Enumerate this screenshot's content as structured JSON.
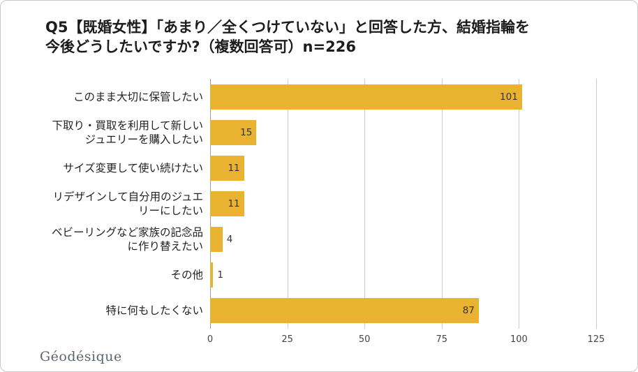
{
  "header": {
    "title": "Q5【既婚女性】「あまり／全くつけていない」と回答した方、結婚指輪を\n今後どうしたいですか?（複数回答可）n=226"
  },
  "footer": {
    "brand": "Géodésique"
  },
  "colors": {
    "bar": "#EAB231",
    "grid": "#cccccc",
    "zero_axis": "#9e9e9e",
    "title_text": "#1c1c1c",
    "category_text": "#222222",
    "value_text": "#333333",
    "tick_text": "#444444",
    "card_border": "#c9c9c9",
    "background": "#ffffff",
    "footer_text": "#5b6570"
  },
  "chart_data": {
    "type": "bar",
    "orientation": "horizontal",
    "title": "Q5【既婚女性】「あまり／全くつけていない」と回答した方、結婚指輪を今後どうしたいですか?（複数回答可）n=226",
    "n": 226,
    "categories": [
      "このまま大切に保管したい",
      "下取り・買取を利用して新しい\nジュエリーを購入したい",
      "サイズ変更して使い続けたい",
      "リデザインして自分用のジュエ\nリーにしたい",
      "ベビーリングなど家族の記念品\nに作り替えたい",
      "その他",
      "特に何もしたくない"
    ],
    "values": [
      101,
      15,
      11,
      11,
      4,
      1,
      87
    ],
    "xlim": [
      0,
      125
    ],
    "xticks": [
      0,
      25,
      50,
      75,
      100,
      125
    ],
    "grid": "vertical",
    "legend": "none",
    "xlabel": "",
    "ylabel": ""
  }
}
